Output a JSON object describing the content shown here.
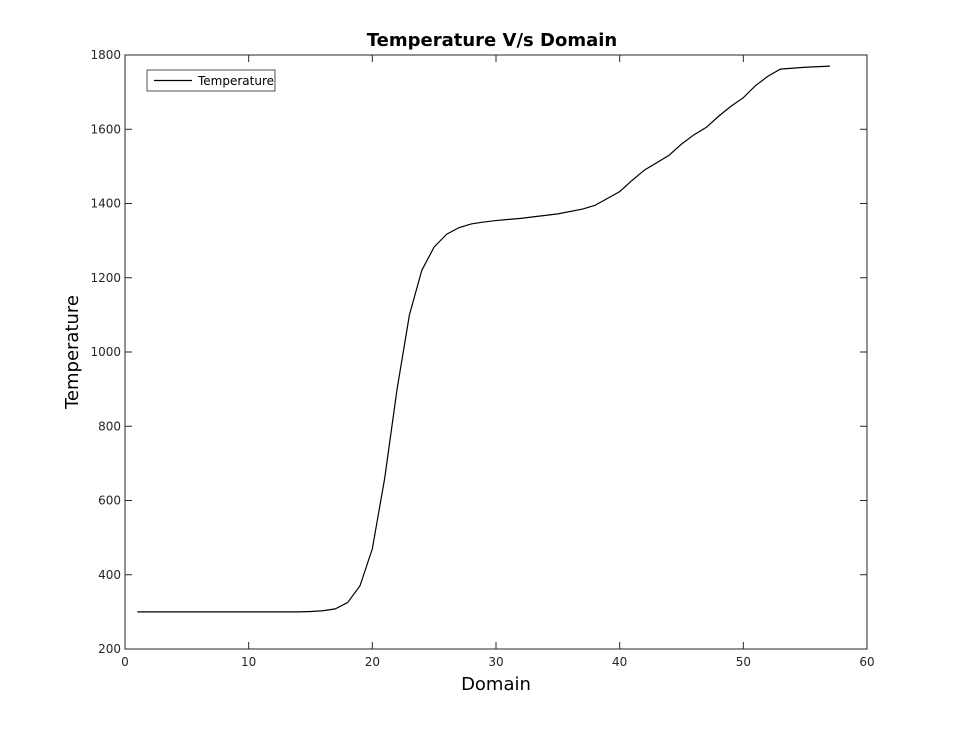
{
  "chart_data": {
    "type": "line",
    "title": "Temperature V/s Domain",
    "xlabel": "Domain",
    "ylabel": "Temperature",
    "xlim": [
      0,
      60
    ],
    "ylim": [
      200,
      1800
    ],
    "xticks": [
      0,
      10,
      20,
      30,
      40,
      50,
      60
    ],
    "yticks": [
      200,
      400,
      600,
      800,
      1000,
      1200,
      1400,
      1600,
      1800
    ],
    "grid": false,
    "legend_position": "top-left",
    "series": [
      {
        "name": "Temperature",
        "color": "#000000",
        "x": [
          1,
          5,
          10,
          14,
          15,
          16,
          17,
          18,
          19,
          20,
          21,
          22,
          23,
          24,
          25,
          26,
          27,
          28,
          29,
          30,
          32,
          35,
          37,
          38,
          40,
          41,
          42,
          44,
          45,
          46,
          47,
          48,
          49,
          50,
          51,
          52,
          53,
          55,
          57
        ],
        "y": [
          300,
          300,
          300,
          300,
          301,
          303,
          308,
          325,
          370,
          470,
          660,
          900,
          1100,
          1220,
          1283,
          1317,
          1335,
          1345,
          1350,
          1354,
          1360,
          1372,
          1385,
          1395,
          1432,
          1462,
          1490,
          1530,
          1560,
          1585,
          1605,
          1635,
          1662,
          1685,
          1718,
          1743,
          1762,
          1767,
          1770
        ]
      }
    ]
  }
}
